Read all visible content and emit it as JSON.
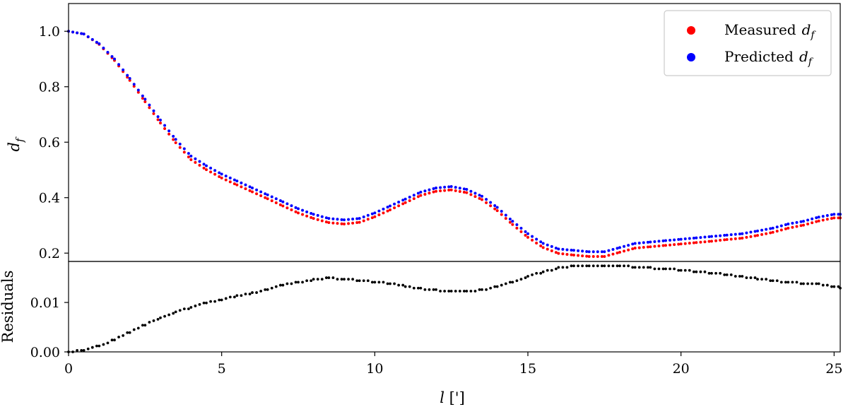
{
  "chart_data": [
    {
      "panel": "top",
      "type": "scatter",
      "xlim": [
        0,
        25.2
      ],
      "ylim": [
        0.17,
        1.1
      ],
      "ylabel": "d_f",
      "ylabel_main": "d",
      "ylabel_sub": "f",
      "y_ticks": [
        {
          "value": 0.2,
          "label": "0.2"
        },
        {
          "value": 0.4,
          "label": "0.4"
        },
        {
          "value": 0.6,
          "label": "0.6"
        },
        {
          "value": 0.8,
          "label": "0.8"
        },
        {
          "value": 1.0,
          "label": "1.0"
        }
      ],
      "legend": {
        "position": "top-right",
        "entries": [
          {
            "label": "Measured d_f",
            "text": "Measured",
            "var": "d",
            "sub": "f",
            "color": "#ff0000"
          },
          {
            "label": "Predicted d_f",
            "text": "Predicted",
            "var": "d",
            "sub": "f",
            "color": "#0000ff"
          }
        ]
      },
      "series": [
        {
          "name": "Predicted d_f",
          "color": "#0000ff",
          "x": [
            0,
            0.5,
            1,
            1.5,
            2,
            2.5,
            3,
            3.5,
            4,
            4.5,
            5,
            5.5,
            6,
            6.5,
            7,
            7.5,
            8,
            8.5,
            9,
            9.5,
            10,
            10.5,
            11,
            11.5,
            12,
            12.5,
            13,
            13.5,
            14,
            14.5,
            15,
            15.5,
            16,
            16.5,
            17,
            17.5,
            18,
            18.5,
            19,
            19.5,
            20,
            20.5,
            21,
            21.5,
            22,
            22.5,
            23,
            23.5,
            24,
            24.5,
            25,
            25.2
          ],
          "y": [
            1.0,
            0.99,
            0.955,
            0.9,
            0.83,
            0.755,
            0.68,
            0.61,
            0.55,
            0.515,
            0.485,
            0.46,
            0.435,
            0.41,
            0.385,
            0.36,
            0.34,
            0.325,
            0.32,
            0.325,
            0.345,
            0.37,
            0.395,
            0.42,
            0.435,
            0.44,
            0.43,
            0.405,
            0.365,
            0.315,
            0.27,
            0.235,
            0.215,
            0.21,
            0.205,
            0.205,
            0.22,
            0.235,
            0.24,
            0.245,
            0.25,
            0.255,
            0.26,
            0.265,
            0.27,
            0.28,
            0.29,
            0.305,
            0.315,
            0.33,
            0.34,
            0.34
          ]
        },
        {
          "name": "Measured d_f",
          "color": "#ff0000",
          "x": [
            0,
            0.5,
            1,
            1.5,
            2,
            2.5,
            3,
            3.5,
            4,
            4.5,
            5,
            5.5,
            6,
            6.5,
            7,
            7.5,
            8,
            8.5,
            9,
            9.5,
            10,
            10.5,
            11,
            11.5,
            12,
            12.5,
            13,
            13.5,
            14,
            14.5,
            15,
            15.5,
            16,
            16.5,
            17,
            17.5,
            18,
            18.5,
            19,
            19.5,
            20,
            20.5,
            21,
            21.5,
            22,
            22.5,
            23,
            23.5,
            24,
            24.5,
            25,
            25.2
          ],
          "y": [
            1.0,
            0.99,
            0.953,
            0.895,
            0.823,
            0.746,
            0.669,
            0.598,
            0.537,
            0.501,
            0.471,
            0.446,
            0.421,
            0.396,
            0.37,
            0.345,
            0.325,
            0.31,
            0.305,
            0.311,
            0.331,
            0.356,
            0.382,
            0.408,
            0.423,
            0.428,
            0.418,
            0.393,
            0.353,
            0.303,
            0.257,
            0.22,
            0.199,
            0.193,
            0.188,
            0.188,
            0.203,
            0.218,
            0.223,
            0.228,
            0.233,
            0.238,
            0.243,
            0.249,
            0.254,
            0.264,
            0.275,
            0.29,
            0.301,
            0.316,
            0.327,
            0.327
          ]
        }
      ]
    },
    {
      "panel": "bottom",
      "type": "scatter",
      "xlim": [
        0,
        25.2
      ],
      "ylim": [
        0,
        0.0183
      ],
      "xlabel": "l [']",
      "xlabel_var": "l",
      "xlabel_unit": " [']",
      "ylabel": "Residuals",
      "x_ticks": [
        {
          "value": 0,
          "label": "0"
        },
        {
          "value": 5,
          "label": "5"
        },
        {
          "value": 10,
          "label": "10"
        },
        {
          "value": 15,
          "label": "15"
        },
        {
          "value": 20,
          "label": "20"
        },
        {
          "value": 25,
          "label": "25"
        }
      ],
      "y_ticks": [
        {
          "value": 0,
          "label": "0.00"
        },
        {
          "value": 0.01,
          "label": "0.01"
        }
      ],
      "series": [
        {
          "name": "Residuals",
          "color": "#000000",
          "x": [
            0,
            0.5,
            1,
            1.5,
            2,
            2.5,
            3,
            3.5,
            4,
            4.5,
            5,
            5.5,
            6,
            6.5,
            7,
            7.5,
            8,
            8.5,
            9,
            9.5,
            10,
            10.5,
            11,
            11.5,
            12,
            12.5,
            13,
            13.5,
            14,
            14.5,
            15,
            15.5,
            16,
            16.5,
            17,
            17.5,
            18,
            18.5,
            19,
            19.5,
            20,
            20.5,
            21,
            21.5,
            22,
            22.5,
            23,
            23.5,
            24,
            24.5,
            25,
            25.2
          ],
          "y": [
            0.0,
            0.0003,
            0.0012,
            0.0025,
            0.004,
            0.0055,
            0.0068,
            0.008,
            0.009,
            0.0099,
            0.0106,
            0.0113,
            0.0119,
            0.0127,
            0.0135,
            0.0141,
            0.0146,
            0.0149,
            0.0148,
            0.0145,
            0.0142,
            0.0138,
            0.0133,
            0.0128,
            0.0125,
            0.0122,
            0.0122,
            0.0125,
            0.0132,
            0.0141,
            0.0152,
            0.0162,
            0.017,
            0.0174,
            0.0175,
            0.0175,
            0.0174,
            0.0172,
            0.017,
            0.0168,
            0.0166,
            0.0163,
            0.016,
            0.0156,
            0.0152,
            0.0148,
            0.0144,
            0.0141,
            0.0139,
            0.0137,
            0.0132,
            0.013
          ]
        }
      ]
    }
  ]
}
